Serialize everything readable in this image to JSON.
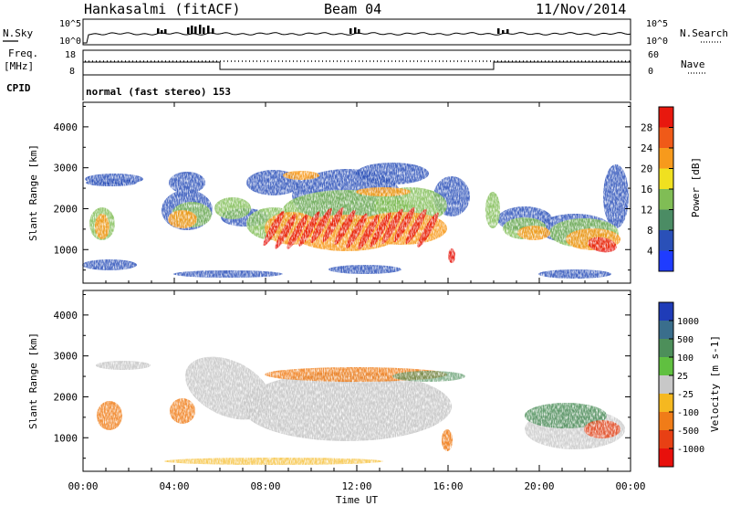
{
  "header": {
    "title": "Hankasalmi (fitACF)",
    "beam": "Beam 04",
    "date": "11/Nov/2014"
  },
  "panels": {
    "nsky_label": "N.Sky",
    "nsearch_label": "N.Search",
    "nsky_ticks": [
      "10^5",
      "10^0"
    ],
    "nsearch_ticks": [
      "10^5",
      "10^0"
    ],
    "freq_label": [
      "Freq.",
      "[MHz]"
    ],
    "freq_ticks": [
      "18",
      "8"
    ],
    "nave_label": "Nave",
    "nave_ticks": [
      "60",
      "0"
    ],
    "cpid_label": "CPID",
    "cpid_text": "normal (fast stereo) 153"
  },
  "chart_data": [
    {
      "type": "heatmap",
      "parameter": "Power",
      "ylabel": "Slant Range [km]",
      "ylim": [
        180,
        4600
      ],
      "yticks": [
        "1000",
        "2000",
        "3000",
        "4000"
      ],
      "xlim": [
        "00:00",
        "24:00"
      ],
      "colorbar": {
        "label": "Power [dB]",
        "ticks": [
          "4",
          "8",
          "12",
          "16",
          "20",
          "24",
          "28"
        ],
        "colors": [
          "#1f3cff",
          "#2a50b8",
          "#4b8c64",
          "#80bd55",
          "#f0e020",
          "#f79a1c",
          "#f05a18",
          "#e8180e"
        ]
      }
    },
    {
      "type": "heatmap",
      "parameter": "Velocity",
      "ylabel": "Slant Range [km]",
      "ylim": [
        180,
        4600
      ],
      "yticks": [
        "1000",
        "2000",
        "3000",
        "4000"
      ],
      "xlim": [
        "00:00",
        "24:00"
      ],
      "colorbar": {
        "label": "Velocity [m s-1]",
        "ticks": [
          "1000",
          "500",
          "100",
          "25",
          "-25",
          "-100",
          "-500",
          "-1000"
        ],
        "colors": [
          "#1f3cb8",
          "#3a6e8c",
          "#4d8f5a",
          "#60c040",
          "#c8c8c8",
          "#f5b820",
          "#f07c18",
          "#e84014",
          "#e8100c"
        ]
      }
    }
  ],
  "xaxis": {
    "ticks": [
      "00:00",
      "04:00",
      "08:00",
      "12:00",
      "16:00",
      "20:00",
      "00:00"
    ],
    "label": "Time UT"
  },
  "colors": {
    "frame": "#000000",
    "background": "#ffffff"
  }
}
